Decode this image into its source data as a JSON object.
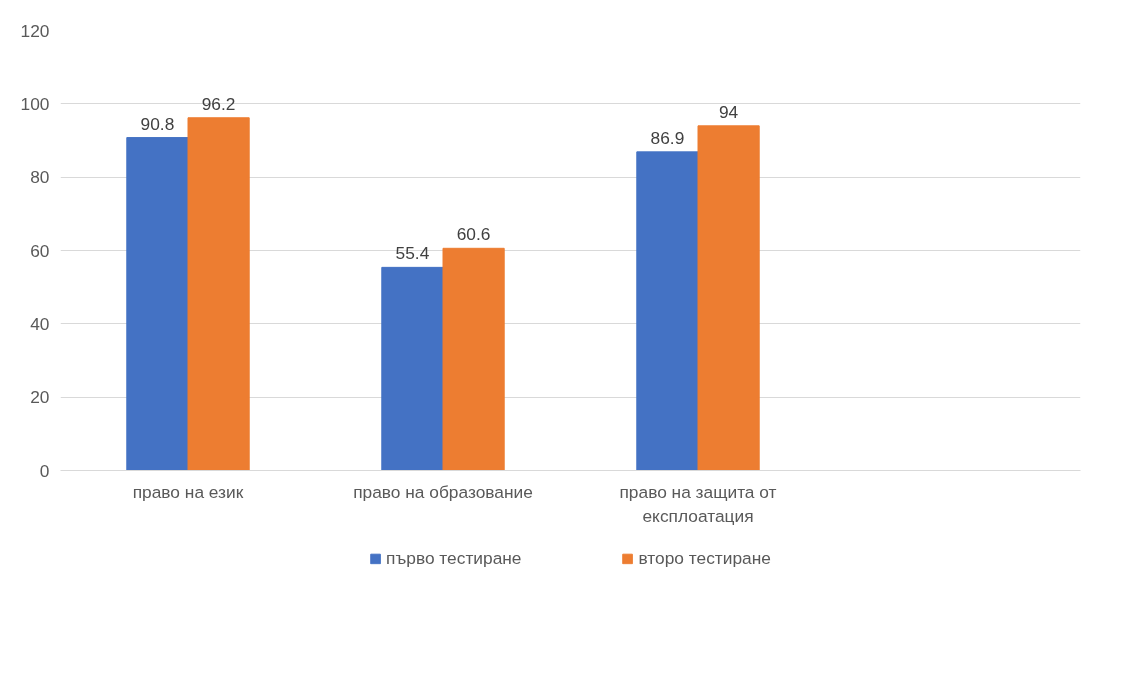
{
  "chart_data": {
    "type": "bar",
    "categories": [
      "право на език",
      "право на образование",
      "право на защита от експлоатация",
      null
    ],
    "series": [
      {
        "name": "първо тестиране",
        "color": "#4472c4",
        "values": [
          90.8,
          55.4,
          86.9,
          null
        ]
      },
      {
        "name": "второ тестиране",
        "color": "#ed7d31",
        "values": [
          96.2,
          60.6,
          94,
          null
        ]
      }
    ],
    "ylim": [
      0,
      120
    ],
    "yticks": [
      0,
      20,
      40,
      60,
      80,
      100,
      120
    ],
    "grid": "y",
    "legend": "bottom",
    "data_labels": true
  }
}
